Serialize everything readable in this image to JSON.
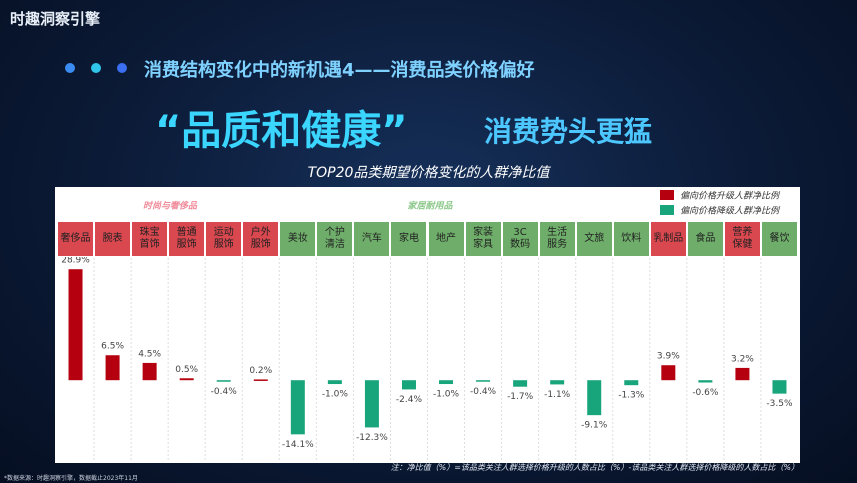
{
  "logo": "时趣洞察引擎",
  "heading": "消费结构变化中的新机遇4——消费品类价格偏好",
  "headline": {
    "highlight": "“品质和健康”",
    "rest": "消费势头更猛"
  },
  "chart_data": {
    "type": "bar",
    "title": "TOP20品类期望价格变化的人群净比值",
    "groups": [
      "时尚与奢侈品",
      "家居耐用品"
    ],
    "categories": [
      "奢侈品",
      "腕表",
      "珠宝\n首饰",
      "普通\n服饰",
      "运动\n服饰",
      "户外\n服饰",
      "美妆",
      "个护\n清洁",
      "汽车",
      "家电",
      "地产",
      "家装\n家具",
      "3C\n数码",
      "生活\n服务",
      "文旅",
      "饮料",
      "乳制品",
      "食品",
      "营养\n保健",
      "餐饮"
    ],
    "header_colors": [
      "#d9474f",
      "#d9474f",
      "#d9474f",
      "#d9474f",
      "#d9474f",
      "#d9474f",
      "#6fae6a",
      "#6fae6a",
      "#6fae6a",
      "#6fae6a",
      "#6fae6a",
      "#6fae6a",
      "#6fae6a",
      "#6fae6a",
      "#6fae6a",
      "#6fae6a",
      "#d9474f",
      "#6fae6a",
      "#d9474f",
      "#6fae6a"
    ],
    "values": [
      28.9,
      6.5,
      4.5,
      0.5,
      -0.4,
      0.2,
      -14.1,
      -1.0,
      -12.3,
      -2.4,
      -1.0,
      -0.4,
      -1.7,
      -1.1,
      -9.1,
      -1.3,
      3.9,
      -0.6,
      3.2,
      -3.5
    ],
    "value_labels": [
      "28.9%",
      "6.5%",
      "4.5%",
      "0.5%",
      "-0.4%",
      "0.2%",
      "-14.1%",
      "-1.0%",
      "-12.3%",
      "-2.4%",
      "-1.0%",
      "-0.4%",
      "-1.7%",
      "-1.1%",
      "-9.1%",
      "-1.3%",
      "3.9%",
      "-0.6%",
      "3.2%",
      "-3.5%"
    ],
    "legend": [
      {
        "name": "偏向价格升级人群净比例",
        "color": "#b5000f"
      },
      {
        "name": "偏向价格降级人群净比例",
        "color": "#19a57c"
      }
    ],
    "ylim": [
      -20,
      30
    ],
    "note": "注：净比值（%）=该品类关注人群选择价格升级的人数占比（%）-该品类关注人群选择价格降级的人数占比（%）",
    "source": "*数据来源：时趣洞察引擎，数据截止2023年11月"
  }
}
